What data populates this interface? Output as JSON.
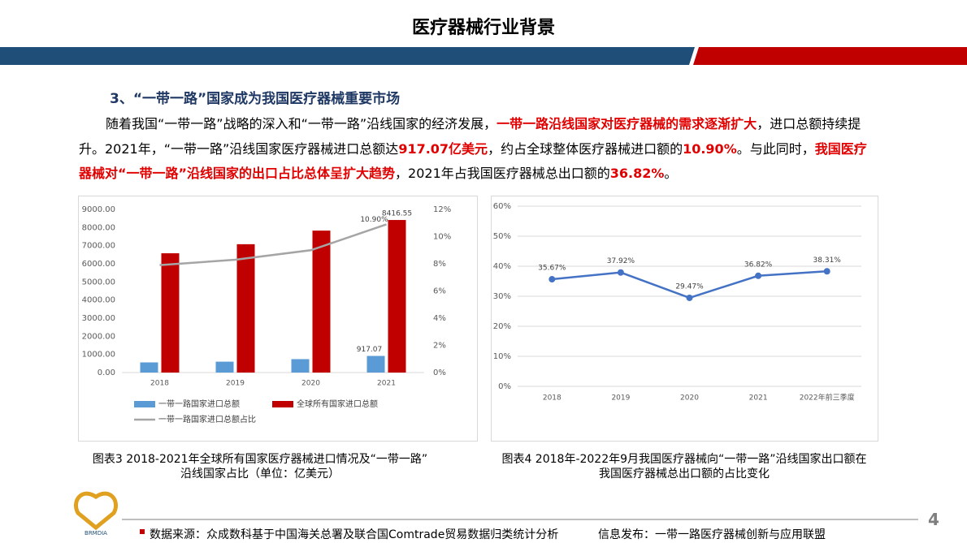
{
  "header": {
    "title": "医疗器械行业背景"
  },
  "section": {
    "heading": "3、“一带一路”国家成为我国医疗器械重要市场",
    "paragraph": [
      {
        "text": "随着我国“一带一路”战略的深入和“一带一路”沿线国家的经济发展，",
        "emphasis": false
      },
      {
        "text": "一带一路沿线国家对医疗器械的需求逐渐扩大",
        "emphasis": true
      },
      {
        "text": "，进口总额持续提升。2021年，“一带一路”沿线国家医疗器械进口总额达",
        "emphasis": false
      },
      {
        "text": "917.07亿美元",
        "emphasis": true
      },
      {
        "text": "，约占全球整体医疗器械进口额的",
        "emphasis": false
      },
      {
        "text": "10.90%",
        "emphasis": true
      },
      {
        "text": "。与此同时，",
        "emphasis": false
      },
      {
        "text": "我国医疗器械对“一带一路”沿线国家的出口占比总体呈扩大趋势",
        "emphasis": true
      },
      {
        "text": "，2021年占我国医疗器械总出口额的",
        "emphasis": false
      },
      {
        "text": "36.82%",
        "emphasis": true
      },
      {
        "text": "。",
        "emphasis": false
      }
    ]
  },
  "chart_data": [
    {
      "type": "bar",
      "categories": [
        "2018",
        "2019",
        "2020",
        "2021"
      ],
      "series": [
        {
          "name": "一带一路国家进口总额",
          "color": "#5b9bd5",
          "values": [
            560,
            600,
            740,
            917.07
          ],
          "value_labels": [
            null,
            null,
            null,
            "917.07"
          ]
        },
        {
          "name": "全球所有国家进口总额",
          "color": "#c00000",
          "values": [
            6580,
            7080,
            7830,
            8416.55
          ],
          "value_labels": [
            null,
            null,
            null,
            "8416.55"
          ]
        },
        {
          "name": "一带一路国家进口总额占比",
          "color": "#a5a5a5",
          "type": "line",
          "axis": "y2",
          "values": [
            7.9,
            8.3,
            9.0,
            10.9
          ],
          "value_labels": [
            null,
            null,
            null,
            "10.90%"
          ]
        }
      ],
      "ylim": [
        0,
        9000
      ],
      "yticks": [
        {
          "value": 0,
          "label": "0.00"
        },
        {
          "value": 1000,
          "label": "1000.00"
        },
        {
          "value": 2000,
          "label": "2000.00"
        },
        {
          "value": 3000,
          "label": "3000.00"
        },
        {
          "value": 4000,
          "label": "4000.00"
        },
        {
          "value": 5000,
          "label": "5000.00"
        },
        {
          "value": 6000,
          "label": "6000.00"
        },
        {
          "value": 7000,
          "label": "7000.00"
        },
        {
          "value": 8000,
          "label": "8000.00"
        },
        {
          "value": 9000,
          "label": "9000.00"
        }
      ],
      "y2lim": [
        0,
        12
      ],
      "y2ticks": [
        {
          "value": 0,
          "label": "0%"
        },
        {
          "value": 2,
          "label": "2%"
        },
        {
          "value": 4,
          "label": "4%"
        },
        {
          "value": 6,
          "label": "6%"
        },
        {
          "value": 8,
          "label": "8%"
        },
        {
          "value": 10,
          "label": "10%"
        },
        {
          "value": 12,
          "label": "12%"
        }
      ],
      "grid": false,
      "legend": "bottom",
      "caption": [
        "图表3  2018-2021年全球所有国家医疗器械进口情况及“一带一路”",
        "沿线国家占比（单位：亿美元）"
      ]
    },
    {
      "type": "line",
      "categories": [
        "2018",
        "2019",
        "2020",
        "2021",
        "2022年前三季度"
      ],
      "values": [
        35.67,
        37.92,
        29.47,
        36.82,
        38.31
      ],
      "value_labels": [
        "35.67%",
        "37.92%",
        "29.47%",
        "36.82%",
        "38.31%"
      ],
      "color": "#4472c4",
      "ylim": [
        0,
        60
      ],
      "yticks": [
        {
          "value": 0,
          "label": "0%"
        },
        {
          "value": 10,
          "label": "10%"
        },
        {
          "value": 20,
          "label": "20%"
        },
        {
          "value": 30,
          "label": "30%"
        },
        {
          "value": 40,
          "label": "40%"
        },
        {
          "value": 50,
          "label": "50%"
        },
        {
          "value": 60,
          "label": "60%"
        }
      ],
      "grid": true,
      "caption": [
        "图表4  2018年-2022年9月我国医疗器械向“一带一路”沿线国家出口额在",
        "我国医疗器械总出口额的占比变化"
      ]
    }
  ],
  "footer": {
    "logo": "BRMDIA",
    "source": "数据来源：众成数科基于中国海关总署及联合国Comtrade贸易数据归类统计分析",
    "publisher": "信息发布：一带一路医疗器械创新与应用联盟",
    "page": "4"
  }
}
